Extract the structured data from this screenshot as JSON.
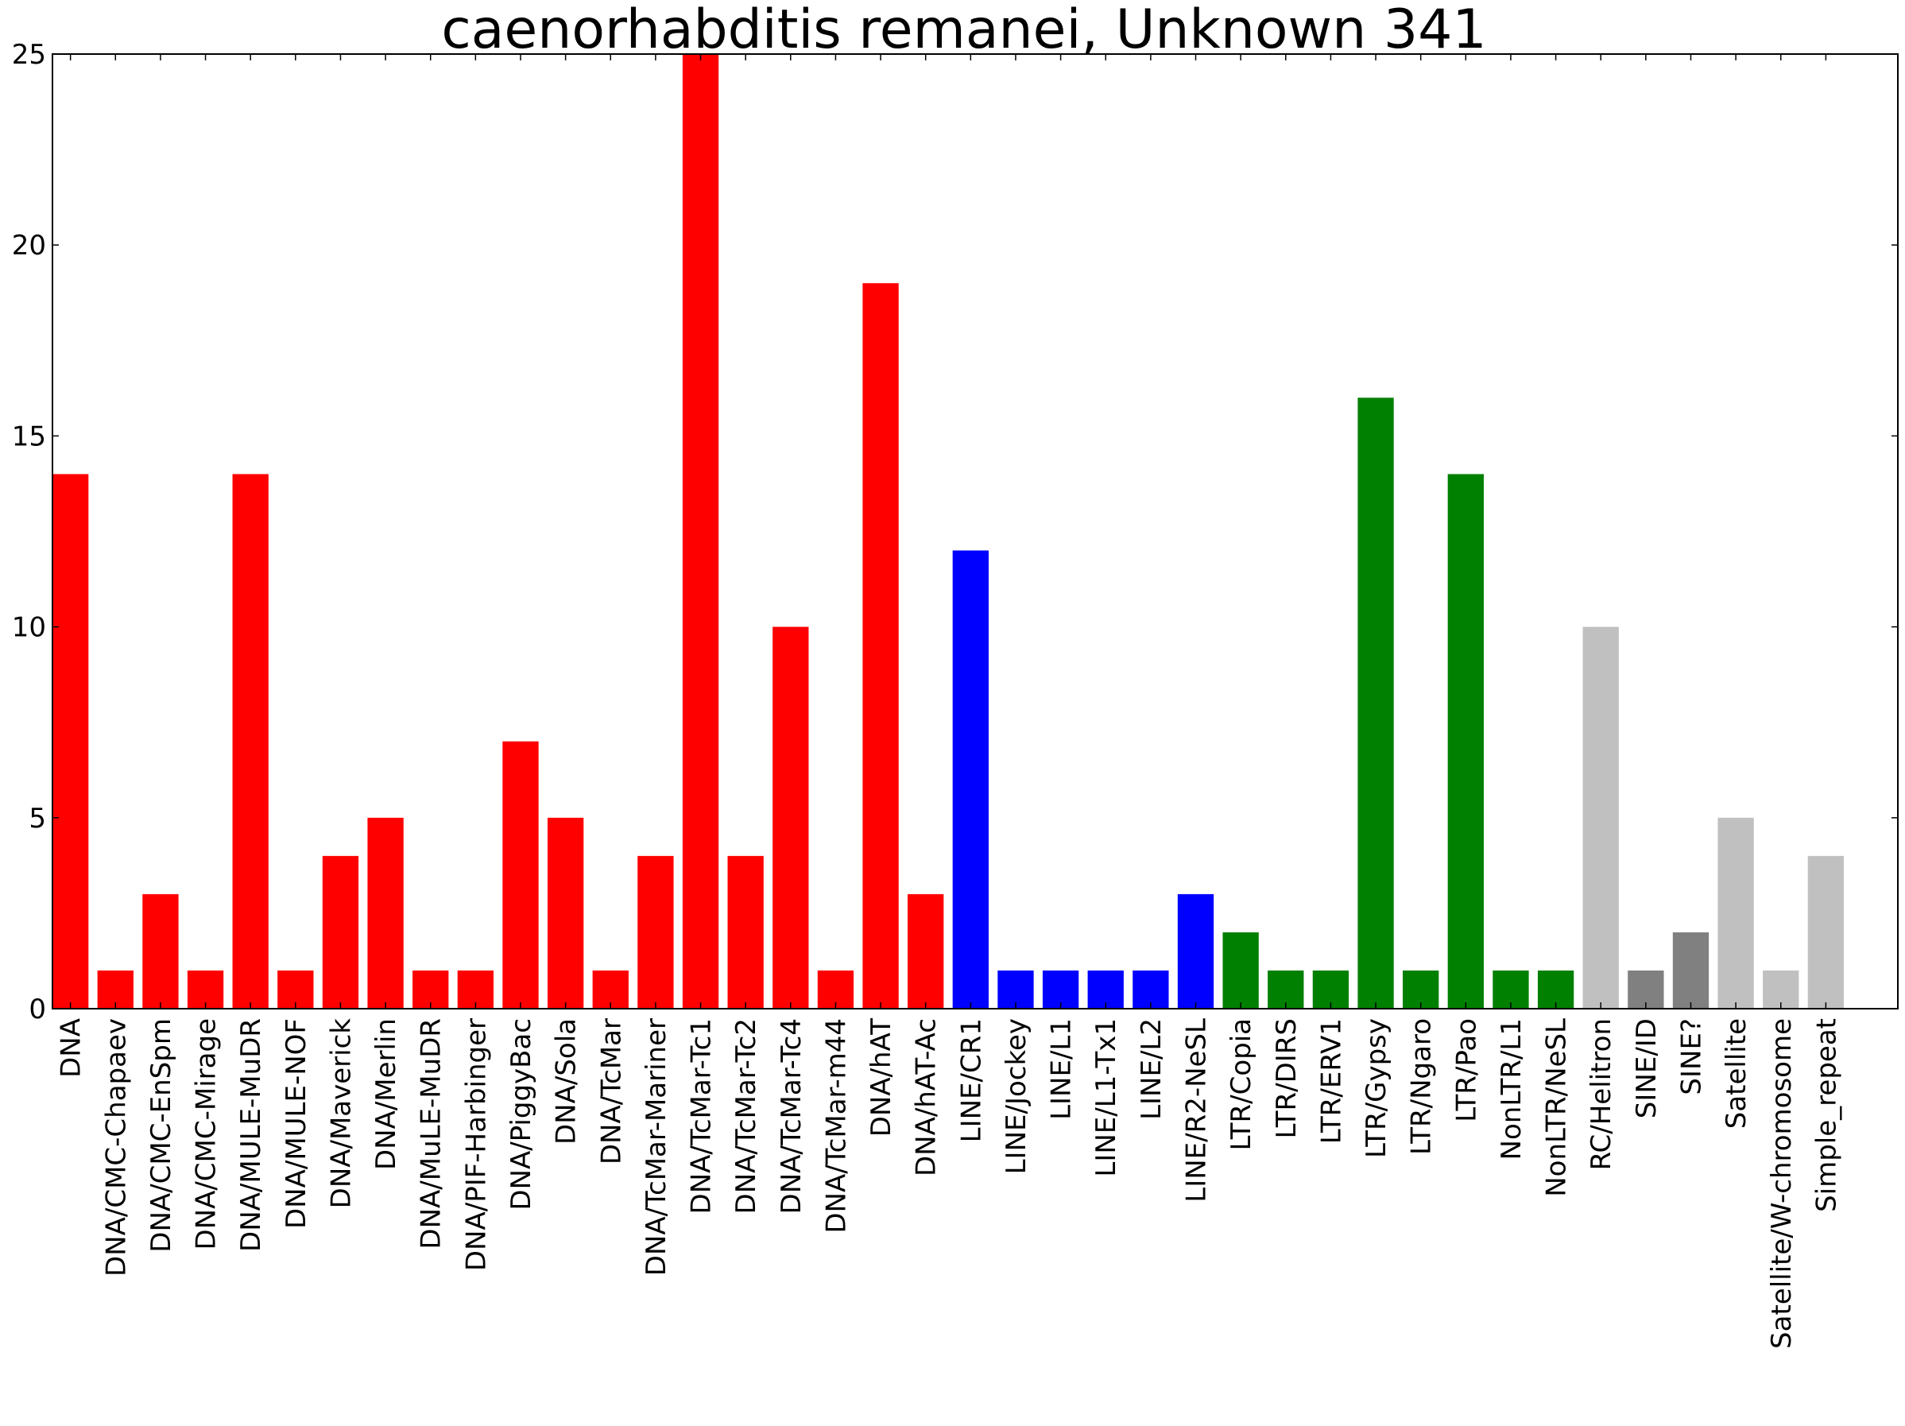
{
  "chart_data": {
    "type": "bar",
    "title": "caenorhabditis remanei, Unknown 341",
    "xlabel": "",
    "ylabel": "",
    "ylim": [
      0,
      25
    ],
    "yticks": [
      0,
      5,
      10,
      15,
      20,
      25
    ],
    "grid": false,
    "legend": "none",
    "categories": [
      "DNA",
      "DNA/CMC-Chapaev",
      "DNA/CMC-EnSpm",
      "DNA/CMC-Mirage",
      "DNA/MULE-MuDR",
      "DNA/MULE-NOF",
      "DNA/Maverick",
      "DNA/Merlin",
      "DNA/MuLE-MuDR",
      "DNA/PIF-Harbinger",
      "DNA/PiggyBac",
      "DNA/Sola",
      "DNA/TcMar",
      "DNA/TcMar-Mariner",
      "DNA/TcMar-Tc1",
      "DNA/TcMar-Tc2",
      "DNA/TcMar-Tc4",
      "DNA/TcMar-m44",
      "DNA/hAT",
      "DNA/hAT-Ac",
      "LINE/CR1",
      "LINE/Jockey",
      "LINE/L1",
      "LINE/L1-Tx1",
      "LINE/L2",
      "LINE/R2-NeSL",
      "LTR/Copia",
      "LTR/DIRS",
      "LTR/ERV1",
      "LTR/Gypsy",
      "LTR/Ngaro",
      "LTR/Pao",
      "NonLTR/L1",
      "NonLTR/NeSL",
      "RC/Helitron",
      "SINE/ID",
      "SINE?",
      "Satellite",
      "Satellite/W-chromosome",
      "Simple_repeat"
    ],
    "values": [
      14,
      1,
      3,
      1,
      14,
      1,
      4,
      5,
      1,
      1,
      7,
      5,
      1,
      4,
      25,
      4,
      10,
      1,
      19,
      3,
      12,
      1,
      1,
      1,
      1,
      3,
      2,
      1,
      1,
      16,
      1,
      14,
      1,
      1,
      10,
      1,
      2,
      5,
      1,
      4
    ],
    "colors": [
      "#ff0000",
      "#ff0000",
      "#ff0000",
      "#ff0000",
      "#ff0000",
      "#ff0000",
      "#ff0000",
      "#ff0000",
      "#ff0000",
      "#ff0000",
      "#ff0000",
      "#ff0000",
      "#ff0000",
      "#ff0000",
      "#ff0000",
      "#ff0000",
      "#ff0000",
      "#ff0000",
      "#ff0000",
      "#ff0000",
      "#0000ff",
      "#0000ff",
      "#0000ff",
      "#0000ff",
      "#0000ff",
      "#0000ff",
      "#008000",
      "#008000",
      "#008000",
      "#008000",
      "#008000",
      "#008000",
      "#008000",
      "#008000",
      "#c0c0c0",
      "#808080",
      "#808080",
      "#c0c0c0",
      "#c0c0c0",
      "#c0c0c0"
    ]
  }
}
